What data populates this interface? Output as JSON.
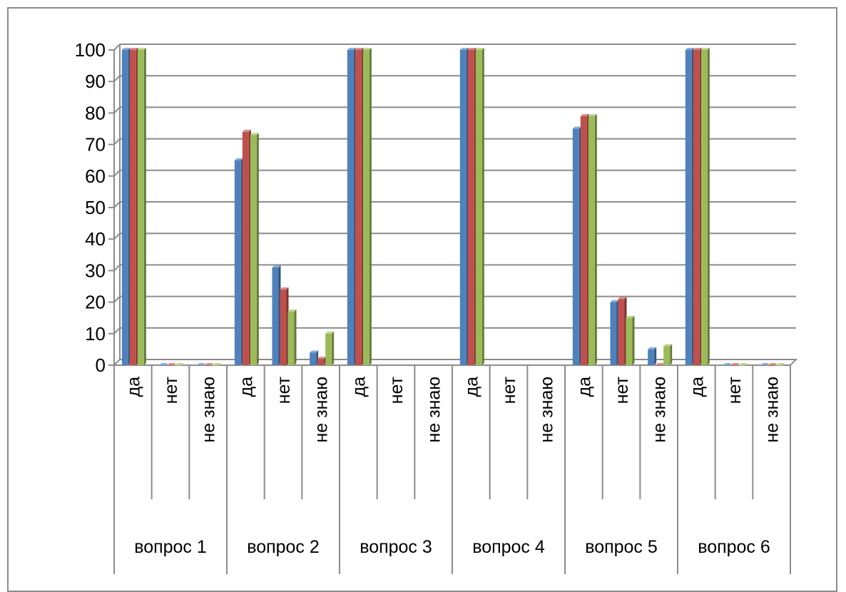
{
  "chart_data": {
    "type": "bar",
    "title": "",
    "xlabel": "",
    "ylabel": "",
    "ylim": [
      0,
      100
    ],
    "yticks": [
      0,
      10,
      20,
      30,
      40,
      50,
      60,
      70,
      80,
      90,
      100
    ],
    "grid": true,
    "legend": "none",
    "groups": [
      {
        "label": "вопрос 1",
        "categories": [
          "да",
          "нет",
          "не знаю"
        ]
      },
      {
        "label": "вопрос 2",
        "categories": [
          "да",
          "нет",
          "не знаю"
        ]
      },
      {
        "label": "вопрос 3",
        "categories": [
          "да",
          "нет",
          "не знаю"
        ]
      },
      {
        "label": "вопрос 4",
        "categories": [
          "да",
          "нет",
          "не знаю"
        ]
      },
      {
        "label": "вопрос 5",
        "categories": [
          "да",
          "нет",
          "не знаю"
        ]
      },
      {
        "label": "вопрос 6",
        "categories": [
          "да",
          "нет",
          "не знаю"
        ]
      }
    ],
    "series": [
      {
        "color": "#4f81bd",
        "values": [
          100,
          0,
          0,
          65,
          31,
          4,
          100,
          null,
          null,
          100,
          null,
          null,
          75,
          20,
          5,
          100,
          0,
          0
        ]
      },
      {
        "color": "#c0504d",
        "values": [
          100,
          0,
          0,
          74,
          24,
          2,
          100,
          null,
          null,
          100,
          null,
          null,
          79,
          21,
          0,
          100,
          0,
          0
        ]
      },
      {
        "color": "#9bbb59",
        "values": [
          100,
          0,
          0,
          73,
          17,
          10,
          100,
          null,
          null,
          100,
          null,
          null,
          79,
          15,
          6,
          100,
          0,
          0
        ]
      }
    ]
  }
}
